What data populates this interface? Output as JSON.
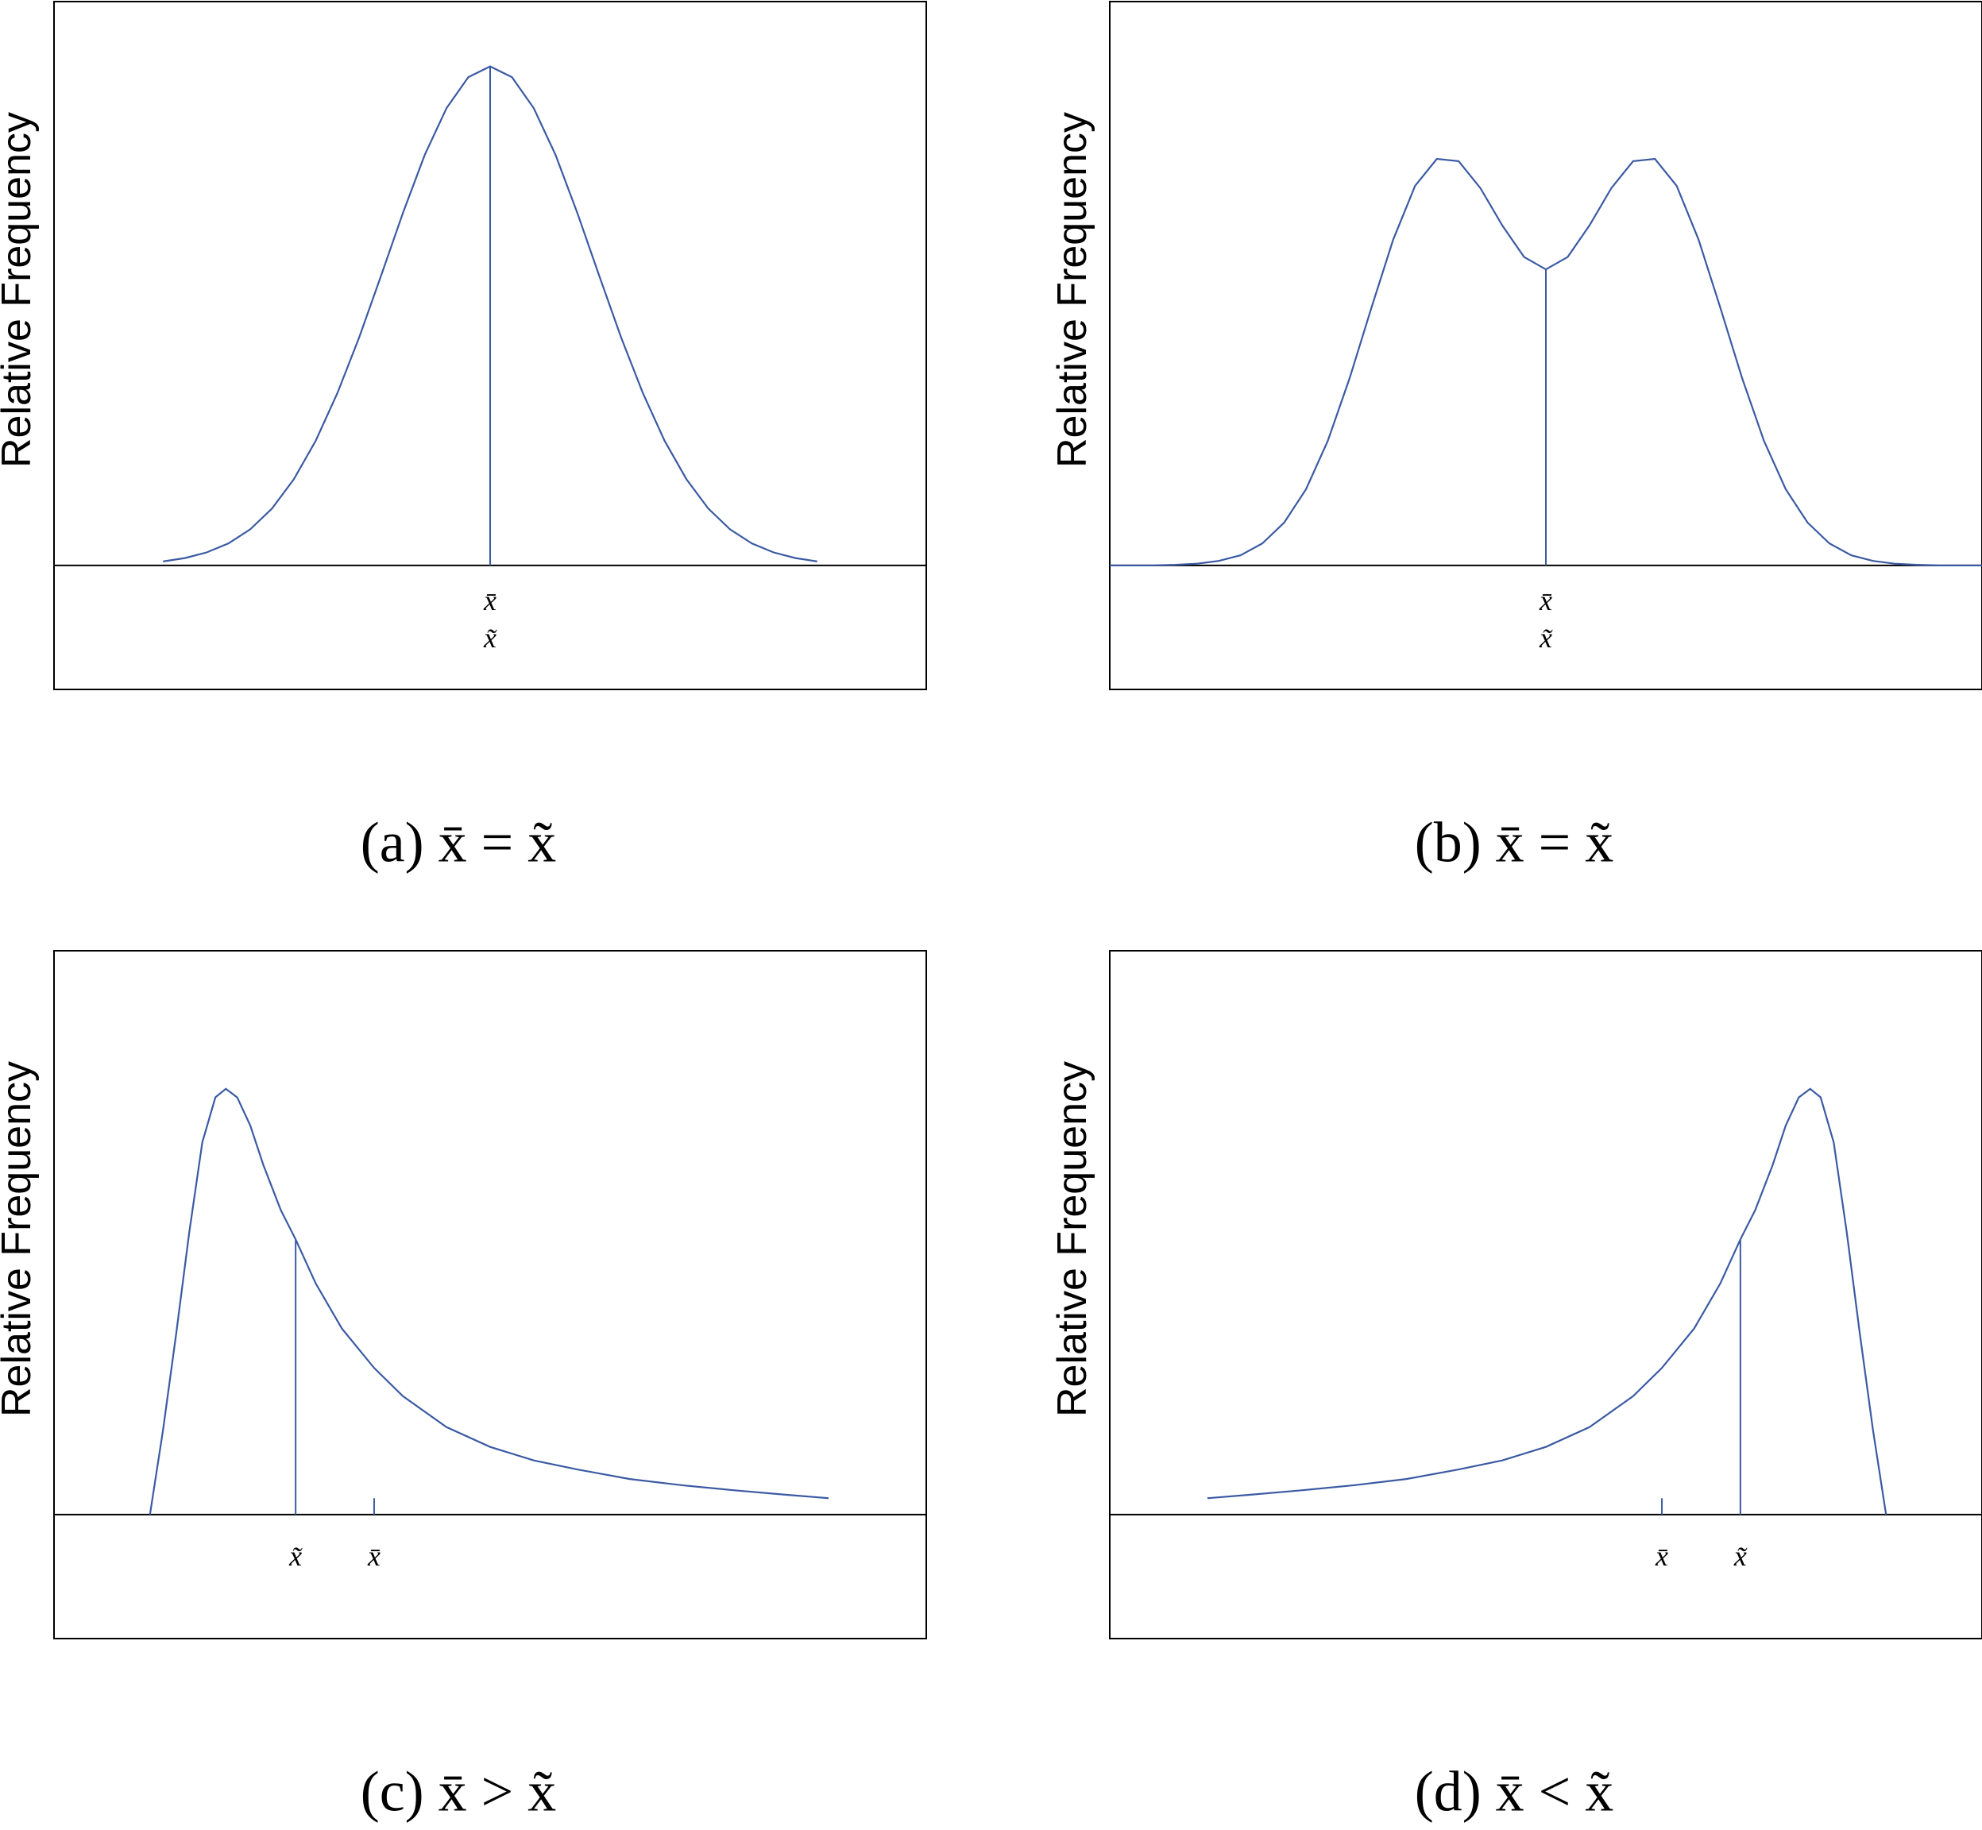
{
  "chart_data": [
    {
      "type": "line",
      "y_label": "Relative Frequency",
      "caption": "(a) x̄ = x̃",
      "color": "#3b5aa3",
      "xlim": [
        0,
        100
      ],
      "ylim": [
        -22,
        100
      ],
      "x": [
        12.5,
        15,
        17.5,
        20,
        22.5,
        25,
        27.5,
        30,
        32.5,
        35,
        37.5,
        40,
        42.5,
        45,
        47.5,
        50,
        52.5,
        55,
        57.5,
        60,
        62.5,
        65,
        67.5,
        70,
        72.5,
        75,
        77.5,
        80,
        82.5,
        85,
        87.5
      ],
      "values": [
        0.7,
        1.3,
        2.3,
        3.9,
        6.4,
        10.1,
        15.3,
        22.1,
        30.6,
        40.5,
        51.4,
        62.5,
        72.8,
        81.1,
        86.6,
        88.5,
        86.6,
        81.1,
        72.8,
        62.5,
        51.4,
        40.5,
        30.6,
        22.1,
        15.3,
        10.1,
        6.4,
        3.9,
        2.3,
        1.3,
        0.7
      ],
      "markers": [
        {
          "label": "x̄",
          "x": 50,
          "height": 88.5
        },
        {
          "label": "x̃",
          "x": 50,
          "height": 88.5
        }
      ]
    },
    {
      "type": "line",
      "y_label": "Relative Frequency",
      "caption": "(b) x̄ = x̃",
      "color": "#3b5aa3",
      "xlim": [
        0,
        100
      ],
      "ylim": [
        -22,
        100
      ],
      "x": [
        0,
        2.5,
        5,
        7.5,
        10,
        12.5,
        15,
        17.5,
        20,
        22.5,
        25,
        27.5,
        30,
        32.5,
        35,
        37.5,
        40,
        42.5,
        45,
        47.5,
        50,
        52.5,
        55,
        57.5,
        60,
        62.5,
        65,
        67.5,
        70,
        72.5,
        75,
        77.5,
        80,
        82.5,
        85,
        87.5,
        90,
        92.5,
        95,
        97.5,
        100
      ],
      "values": [
        0,
        0,
        0,
        0.1,
        0.3,
        0.8,
        1.8,
        3.9,
        7.6,
        13.5,
        22.1,
        33.2,
        45.7,
        57.8,
        67.3,
        72.1,
        71.7,
        66.9,
        60.3,
        54.7,
        52.5,
        54.7,
        60.3,
        66.9,
        71.7,
        72.1,
        67.3,
        57.8,
        45.7,
        33.2,
        22.1,
        13.5,
        7.6,
        3.9,
        1.8,
        0.8,
        0.3,
        0.1,
        0,
        0,
        0
      ],
      "markers": [
        {
          "label": "x̄",
          "x": 50,
          "height": 52.5
        },
        {
          "label": "x̃",
          "x": 50,
          "height": 52.5
        }
      ]
    },
    {
      "type": "line",
      "y_label": "Relative Frequency",
      "caption": "(c) x̄ > x̃",
      "color": "#3b5aa3",
      "xlim": [
        0,
        100
      ],
      "ylim": [
        -22,
        100
      ],
      "x": [
        11.0,
        12.5,
        14.0,
        15.5,
        17.0,
        18.5,
        19.7,
        21.0,
        22.5,
        24.0,
        26.0,
        27.7,
        30.0,
        33.0,
        36.7,
        40.0,
        45.0,
        50.0,
        55.0,
        60.0,
        66.0,
        72.0,
        78.0,
        84.0,
        88.8
      ],
      "values": [
        0,
        15,
        32,
        50,
        66,
        74,
        75.5,
        74,
        69,
        62,
        54,
        48.8,
        41,
        33,
        26,
        21,
        15.5,
        12,
        9.6,
        8,
        6.3,
        5.2,
        4.3,
        3.5,
        2.9
      ],
      "markers": [
        {
          "label": "x̃",
          "x": 27.7,
          "height": 48.8
        },
        {
          "label": "x̄",
          "x": 36.7,
          "height": 2.9
        }
      ]
    },
    {
      "type": "line",
      "y_label": "Relative Frequency",
      "caption": "(d) x̄ < x̃",
      "color": "#3b5aa3",
      "xlim": [
        0,
        100
      ],
      "ylim": [
        -22,
        100
      ],
      "x": [
        11.2,
        16.0,
        22.0,
        28.0,
        34.0,
        40.0,
        45.0,
        50.0,
        55.0,
        60.0,
        63.3,
        67.0,
        70.0,
        72.3,
        74.0,
        76.0,
        77.5,
        79.0,
        80.3,
        81.5,
        83.0,
        84.5,
        86.0,
        87.5,
        89.0
      ],
      "values": [
        2.9,
        3.5,
        4.3,
        5.2,
        6.3,
        8,
        9.6,
        12,
        15.5,
        21,
        26,
        33,
        41,
        48.8,
        54,
        62,
        69,
        74,
        75.5,
        74,
        66,
        50,
        32,
        15,
        0
      ],
      "markers": [
        {
          "label": "x̄",
          "x": 63.3,
          "height": 2.9
        },
        {
          "label": "x̃",
          "x": 72.3,
          "height": 48.8
        }
      ]
    }
  ]
}
